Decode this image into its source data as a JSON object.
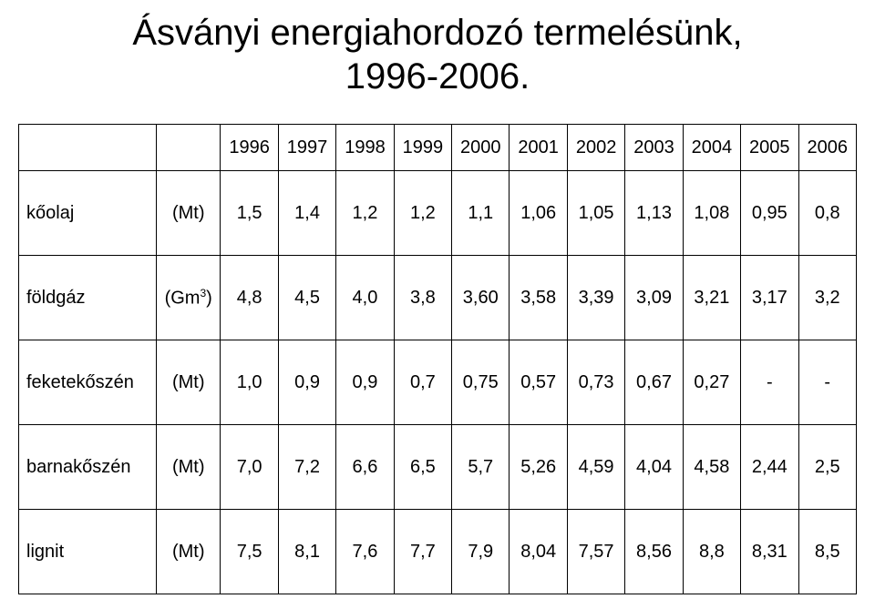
{
  "title_line1": "Ásványi energiahordozó termelésünk,",
  "title_line2": "1996-2006.",
  "header": {
    "blank1": "",
    "blank2": "",
    "years": [
      "1996",
      "1997",
      "1998",
      "1999",
      "2000",
      "2001",
      "2002",
      "2003",
      "2004",
      "2005",
      "2006"
    ]
  },
  "rows": [
    {
      "label": "kőolaj",
      "unit": "(Mt)",
      "values": [
        "1,5",
        "1,4",
        "1,2",
        "1,2",
        "1,1",
        "1,06",
        "1,05",
        "1,13",
        "1,08",
        "0,95",
        "0,8"
      ]
    },
    {
      "label": "földgáz",
      "unit": "(Gm3)",
      "unit_has_sup": true,
      "unit_base": "(Gm",
      "unit_sup": "3",
      "unit_after": ")",
      "values": [
        "4,8",
        "4,5",
        "4,0",
        "3,8",
        "3,60",
        "3,58",
        "3,39",
        "3,09",
        "3,21",
        "3,17",
        "3,2"
      ]
    },
    {
      "label": "feketekőszén",
      "unit": "(Mt)",
      "values": [
        "1,0",
        "0,9",
        "0,9",
        "0,7",
        "0,75",
        "0,57",
        "0,73",
        "0,67",
        "0,27",
        "-",
        "-"
      ]
    },
    {
      "label": "barnakőszén",
      "unit": "(Mt)",
      "values": [
        "7,0",
        "7,2",
        "6,6",
        "6,5",
        "5,7",
        "5,26",
        "4,59",
        "4,04",
        "4,58",
        "2,44",
        "2,5"
      ]
    },
    {
      "label": "lignit",
      "unit": "(Mt)",
      "values": [
        "7,5",
        "8,1",
        "7,6",
        "7,7",
        "7,9",
        "8,04",
        "7,57",
        "8,56",
        "8,8",
        "8,31",
        "8,5"
      ]
    }
  ],
  "style": {
    "background_color": "#ffffff",
    "text_color": "#000000",
    "border_color": "#000000",
    "title_fontsize": 40,
    "cell_fontsize": 20,
    "font_family": "Arial"
  }
}
